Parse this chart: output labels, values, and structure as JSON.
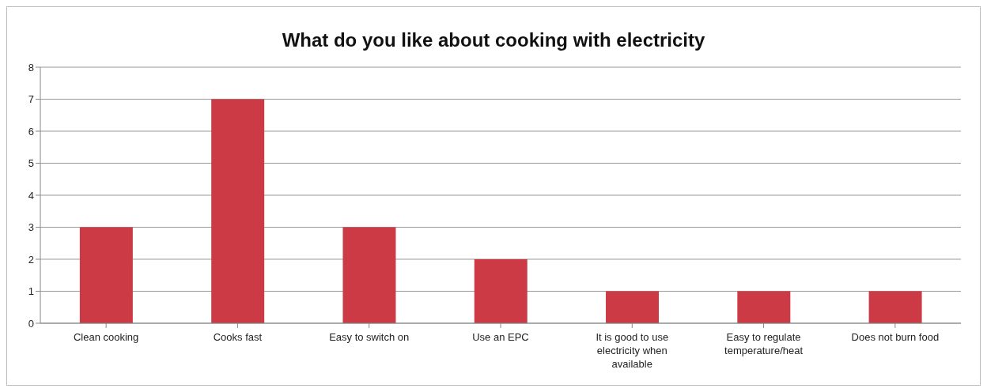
{
  "chart_data": {
    "type": "bar",
    "title": "What do you like about cooking with electricity",
    "categories": [
      "Clean cooking",
      "Cooks fast",
      "Easy to switch on",
      "Use an EPC",
      "It is good to use electricity when available",
      "Easy to regulate temperature/heat",
      "Does not burn food"
    ],
    "values": [
      3,
      7,
      3,
      2,
      1,
      1,
      1
    ],
    "color": "#cc3b45",
    "ylim": [
      0,
      8
    ],
    "yticks": [
      0,
      1,
      2,
      3,
      4,
      5,
      6,
      7,
      8
    ],
    "grid": "y",
    "legend": false
  }
}
